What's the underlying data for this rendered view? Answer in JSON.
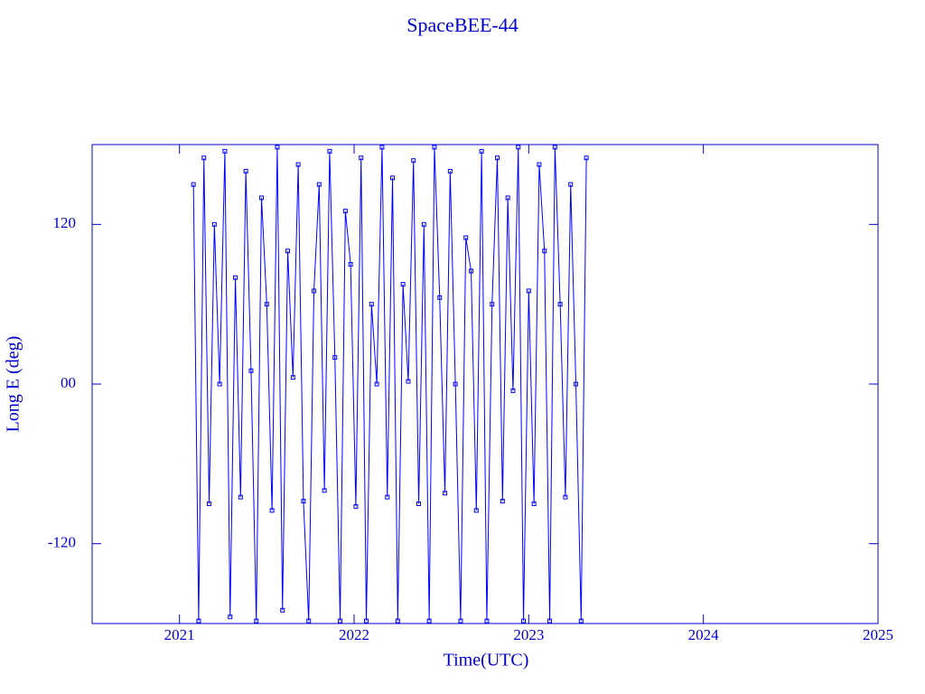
{
  "chart_data": {
    "type": "line",
    "title": "SpaceBEE-44",
    "x_label": "Time(UTC)",
    "y_label": "Long E (deg)",
    "color": "#0000ff",
    "markers": true,
    "xlim": [
      2020.5,
      2025.0
    ],
    "xticks": [
      2021,
      2022,
      2023,
      2024,
      2025
    ],
    "ylim": [
      -180,
      180
    ],
    "yticks": [
      -120,
      {
        "value": 0,
        "label": "00"
      },
      120
    ],
    "x": [
      2021.08,
      2021.11,
      2021.14,
      2021.17,
      2021.2,
      2021.23,
      2021.26,
      2021.29,
      2021.32,
      2021.35,
      2021.38,
      2021.41,
      2021.44,
      2021.47,
      2021.5,
      2021.53,
      2021.56,
      2021.59,
      2021.62,
      2021.65,
      2021.68,
      2021.71,
      2021.74,
      2021.77,
      2021.8,
      2021.83,
      2021.86,
      2021.89,
      2021.92,
      2021.95,
      2021.98,
      2022.01,
      2022.04,
      2022.07,
      2022.1,
      2022.13,
      2022.16,
      2022.19,
      2022.22,
      2022.25,
      2022.28,
      2022.31,
      2022.34,
      2022.37,
      2022.4,
      2022.43,
      2022.46,
      2022.49,
      2022.52,
      2022.55,
      2022.58,
      2022.61,
      2022.64,
      2022.67,
      2022.7,
      2022.73,
      2022.76,
      2022.79,
      2022.82,
      2022.85,
      2022.88,
      2022.91,
      2022.94,
      2022.97,
      2023.0,
      2023.03,
      2023.06,
      2023.09,
      2023.12,
      2023.15,
      2023.18,
      2023.21,
      2023.24,
      2023.27,
      2023.3,
      2023.33
    ],
    "values": [
      150,
      -178,
      170,
      -90,
      120,
      0,
      175,
      -175,
      80,
      -85,
      160,
      10,
      -178,
      140,
      60,
      -95,
      178,
      -170,
      100,
      5,
      165,
      -88,
      -178,
      70,
      150,
      -80,
      175,
      20,
      -178,
      130,
      90,
      -92,
      170,
      -178,
      60,
      0,
      178,
      -85,
      155,
      -178,
      75,
      2,
      168,
      -90,
      120,
      -178,
      178,
      65,
      -82,
      160,
      0,
      -178,
      110,
      85,
      -95,
      175,
      -178,
      60,
      170,
      -88,
      140,
      -5,
      178,
      -178,
      70,
      -90,
      165,
      100,
      -178,
      178,
      60,
      -85,
      150,
      0,
      -178,
      170
    ]
  }
}
